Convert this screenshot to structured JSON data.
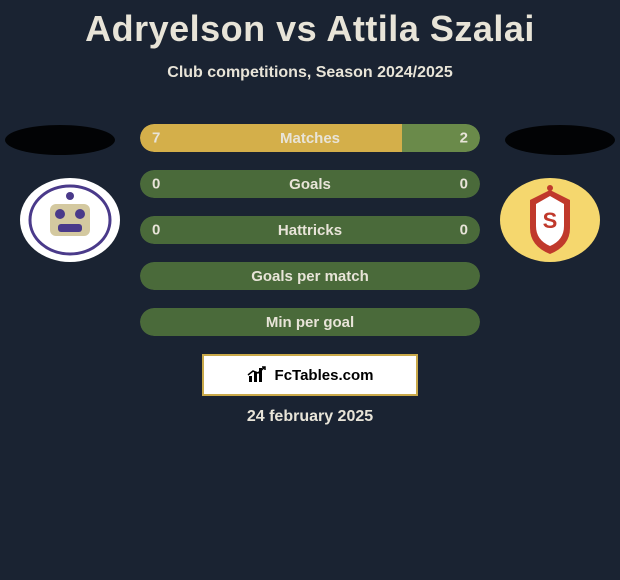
{
  "title": "Adryelson vs Attila Szalai",
  "subtitle": "Club competitions, Season 2024/2025",
  "date": "24 february 2025",
  "brand": "FcTables.com",
  "colors": {
    "player1_bar": "#d4af4a",
    "player2_bar": "#6a8a4a",
    "neutral_bar": "#4a6a3a",
    "bg": "#1a2332",
    "text": "#e8e4d8",
    "brand_border": "#c9a94a"
  },
  "crest_left": {
    "bg": "#ffffff",
    "accent1": "#4a3a8a",
    "accent2": "#d4c9a0"
  },
  "crest_right": {
    "bg": "#f5d76e",
    "accent1": "#c0392b",
    "accent2": "#ffffff"
  },
  "stats": [
    {
      "label": "Matches",
      "v1": "7",
      "v2": "2",
      "p1_pct": 77,
      "p2_pct": 23,
      "mode": "split"
    },
    {
      "label": "Goals",
      "v1": "0",
      "v2": "0",
      "p1_pct": 0,
      "p2_pct": 0,
      "mode": "neutral"
    },
    {
      "label": "Hattricks",
      "v1": "0",
      "v2": "0",
      "p1_pct": 0,
      "p2_pct": 0,
      "mode": "neutral"
    },
    {
      "label": "Goals per match",
      "v1": "",
      "v2": "",
      "p1_pct": 0,
      "p2_pct": 0,
      "mode": "neutral"
    },
    {
      "label": "Min per goal",
      "v1": "",
      "v2": "",
      "p1_pct": 0,
      "p2_pct": 0,
      "mode": "neutral"
    }
  ]
}
